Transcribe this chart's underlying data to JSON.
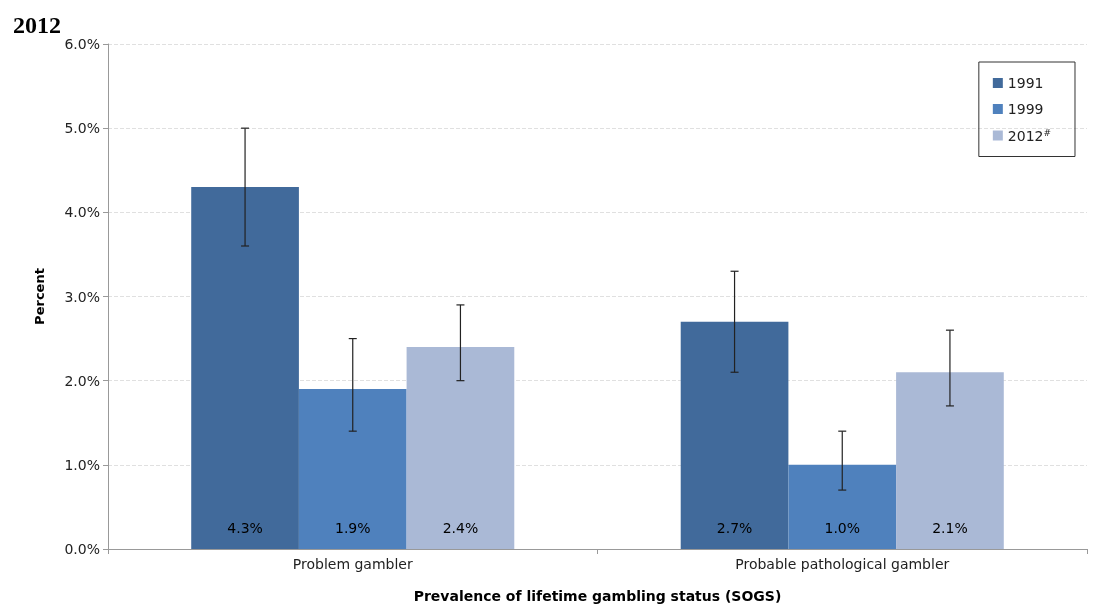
{
  "chart_data": {
    "type": "bar",
    "title": "2012",
    "xlabel": "Prevalence of lifetime gambling status (SOGS)",
    "ylabel": "Percent",
    "categories": [
      "Problem gambler",
      "Probable pathological gambler"
    ],
    "series": [
      {
        "name": "1991",
        "color": "#416a9b",
        "values": [
          4.3,
          2.7
        ],
        "errors": [
          [
            3.6,
            5.0
          ],
          [
            2.1,
            3.3
          ]
        ],
        "value_labels": [
          "4.3%",
          "2.7%"
        ]
      },
      {
        "name": "1999",
        "color": "#4f81bd",
        "values": [
          1.9,
          1.0
        ],
        "errors": [
          [
            1.4,
            2.5
          ],
          [
            0.7,
            1.4
          ]
        ],
        "value_labels": [
          "1.9%",
          "1.0%"
        ]
      },
      {
        "name": "2012$^{#}$",
        "color": "#aab9d6",
        "values": [
          2.4,
          2.1
        ],
        "errors": [
          [
            2.0,
            2.9
          ],
          [
            1.7,
            2.6
          ]
        ],
        "value_labels": [
          "2.4%",
          "2.1%"
        ]
      }
    ],
    "ylim": [
      0,
      6
    ],
    "yticks": [
      {
        "value": 0,
        "label": "0.0%"
      },
      {
        "value": 1,
        "label": "1.0%"
      },
      {
        "value": 2,
        "label": "2.0%"
      },
      {
        "value": 3,
        "label": "3.0%"
      },
      {
        "value": 4,
        "label": "4.0%"
      },
      {
        "value": 5,
        "label": "5.0%"
      },
      {
        "value": 6,
        "label": "6.0%"
      }
    ],
    "grid": "y",
    "legend": "top right"
  }
}
